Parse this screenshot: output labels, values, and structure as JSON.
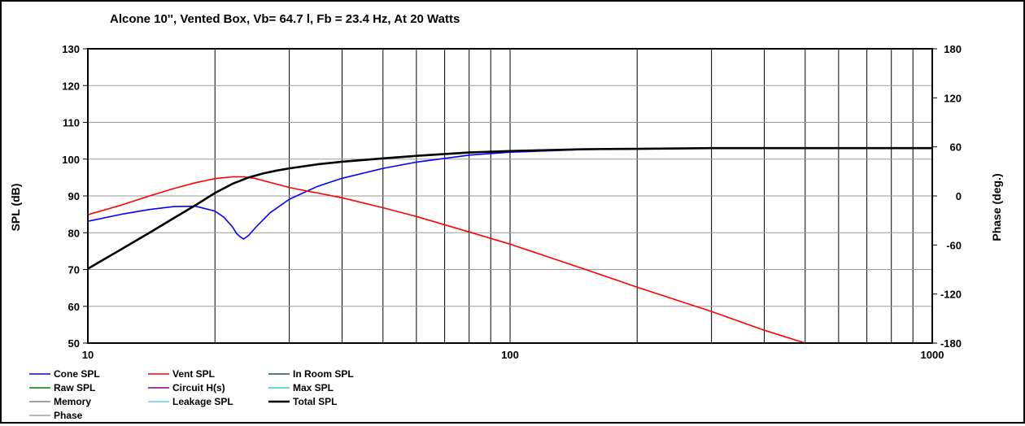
{
  "chart_data": {
    "type": "line",
    "title": "Alcone 10'',  Vented Box, Vb= 64.7 l,  Fb = 23.4 Hz,  At 20 Watts",
    "xlabel": "",
    "ylabel": "SPL (dB)",
    "y2label": "Phase (deg.)",
    "xscale": "log",
    "xlim": [
      10,
      1000
    ],
    "ylim": [
      50,
      130
    ],
    "y2lim": [
      -180,
      180
    ],
    "grid": true,
    "legend_position": "bottom",
    "x_ticks": [
      "10",
      "100",
      "1000"
    ],
    "y_ticks": [
      "50",
      "60",
      "70",
      "80",
      "90",
      "100",
      "110",
      "120",
      "130"
    ],
    "y2_ticks": [
      "-180",
      "-120",
      "-60",
      "0",
      "60",
      "120",
      "180"
    ],
    "legend": [
      {
        "name": "Cone SPL",
        "color": "#0000ff"
      },
      {
        "name": "Vent SPL",
        "color": "#ff0000"
      },
      {
        "name": "In Room SPL",
        "color": "#1f4e5f"
      },
      {
        "name": "Raw SPL",
        "color": "#008000"
      },
      {
        "name": "Circuit H(s)",
        "color": "#800080"
      },
      {
        "name": "Max SPL",
        "color": "#33cccc"
      },
      {
        "name": "Memory",
        "color": "#808080"
      },
      {
        "name": "Leakage SPL",
        "color": "#66ccff"
      },
      {
        "name": "Total SPL",
        "color": "#000000"
      },
      {
        "name": "Phase",
        "color": "#a0a0a0"
      }
    ],
    "series": [
      {
        "name": "Cone SPL",
        "color": "#0000ff",
        "x": [
          10,
          12,
          14,
          16,
          18,
          20,
          21,
          22,
          22.5,
          23,
          23.4,
          24,
          25,
          27,
          30,
          35,
          40,
          50,
          60,
          80,
          100,
          150,
          200,
          300,
          500,
          1000
        ],
        "y": [
          83.1,
          85.0,
          86.3,
          87.1,
          87.2,
          85.9,
          84.2,
          81.6,
          79.8,
          78.8,
          78.3,
          79.2,
          81.5,
          85.4,
          89.1,
          92.6,
          94.8,
          97.5,
          99.2,
          101.1,
          101.9,
          102.6,
          102.8,
          102.9,
          103.0,
          103.0
        ]
      },
      {
        "name": "Vent SPL",
        "color": "#ff0000",
        "x": [
          10,
          12,
          14,
          16,
          18,
          20,
          22,
          23.4,
          25,
          30,
          35,
          40,
          50,
          60,
          80,
          100,
          150,
          200,
          300,
          400,
          500
        ],
        "y": [
          84.9,
          87.5,
          90.0,
          92.0,
          93.6,
          94.7,
          95.2,
          95.2,
          94.7,
          92.3,
          90.8,
          89.5,
          86.8,
          84.4,
          80.2,
          76.9,
          70.1,
          65.2,
          58.6,
          53.5,
          50.0
        ]
      },
      {
        "name": "Total SPL",
        "color": "#000000",
        "x": [
          10,
          12,
          14,
          16,
          18,
          20,
          22,
          24,
          26,
          28,
          30,
          35,
          40,
          50,
          60,
          80,
          100,
          150,
          200,
          300,
          500,
          1000
        ],
        "y": [
          70.2,
          75.5,
          80.0,
          84.0,
          87.5,
          90.8,
          93.3,
          95.0,
          96.1,
          96.9,
          97.5,
          98.6,
          99.3,
          100.2,
          100.9,
          101.8,
          102.2,
          102.7,
          102.8,
          103.0,
          103.0,
          103.0
        ]
      }
    ]
  }
}
